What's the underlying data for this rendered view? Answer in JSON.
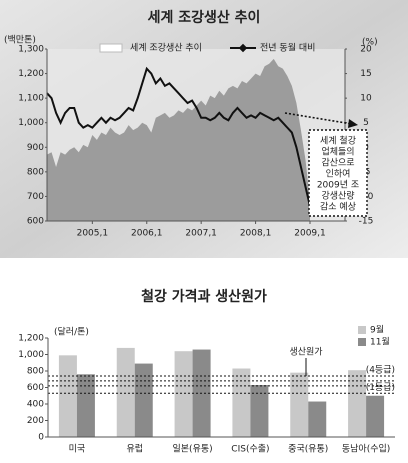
{
  "chart_data": [
    {
      "type": "combo",
      "title": "세계 조강생산 추이",
      "y_label": "(백만톤)",
      "y2_label": "(%)",
      "categories": [
        null,
        null,
        null,
        null,
        null,
        null,
        null,
        null,
        null,
        null,
        "2005,1",
        null,
        null,
        null,
        null,
        null,
        null,
        null,
        null,
        null,
        null,
        null,
        "2006,1",
        null,
        null,
        null,
        null,
        null,
        null,
        null,
        null,
        null,
        null,
        null,
        "2007,1",
        null,
        null,
        null,
        null,
        null,
        null,
        null,
        null,
        null,
        null,
        null,
        "2008,1",
        null,
        null,
        null,
        null,
        null,
        null,
        null,
        null,
        null,
        null,
        null,
        "2009,1"
      ],
      "series": [
        {
          "name": "세계 조강생산 추이",
          "kind": "area",
          "color": "#9c9c9c",
          "values": [
            870,
            880,
            820,
            880,
            870,
            890,
            900,
            880,
            910,
            900,
            950,
            930,
            960,
            950,
            980,
            960,
            950,
            960,
            990,
            970,
            980,
            1000,
            990,
            960,
            1020,
            1030,
            1040,
            1020,
            1030,
            1050,
            1040,
            1060,
            1050,
            1070,
            1090,
            1070,
            1110,
            1100,
            1130,
            1110,
            1140,
            1150,
            1140,
            1170,
            1160,
            1180,
            1200,
            1190,
            1230,
            1240,
            1260,
            1230,
            1220,
            1190,
            1150,
            1080,
            970,
            850,
            680
          ]
        },
        {
          "name": "전년 동월 대비",
          "kind": "line",
          "axis": "y2",
          "color": "#111111",
          "values": [
            11,
            10,
            7,
            5,
            7,
            8,
            8,
            5,
            4,
            4.5,
            4,
            5,
            6,
            5,
            6,
            5.5,
            6,
            7,
            8,
            7.5,
            10,
            13,
            16,
            15,
            13,
            14,
            12.5,
            13,
            12,
            11,
            10,
            9,
            9.5,
            8,
            6,
            6,
            5.5,
            6,
            7,
            6,
            5.5,
            7,
            8,
            7,
            6,
            6.5,
            6,
            7,
            6.5,
            6,
            5.5,
            6,
            5,
            4,
            3,
            0,
            -4,
            -8,
            -12
          ]
        }
      ],
      "ylim": [
        600,
        1300
      ],
      "yticks": [
        600,
        700,
        800,
        900,
        {
          "value": 1000,
          "label": "1,000"
        },
        {
          "value": 1100,
          "label": "1,100"
        },
        {
          "value": 1200,
          "label": "1,200"
        },
        {
          "value": 1300,
          "label": "1,300"
        }
      ],
      "y2lim": [
        -15,
        20
      ],
      "y2ticks": [
        -15,
        -10,
        -5,
        0,
        5,
        10,
        15,
        20
      ],
      "annotation": [
        "세계 철강",
        "업체들의",
        "감산으로",
        "인하여",
        "2009년 조",
        "강생산량",
        "감소 예상"
      ]
    },
    {
      "type": "bar",
      "title": "철강 가격과 생산원가",
      "y_label": "(달러/톤)",
      "categories": [
        "미국",
        "유럽",
        "일본(유통)",
        "CIS(수출)",
        "중국(유통)",
        "동남아(수입)"
      ],
      "series": [
        {
          "name": "9월",
          "color": "#c8c8c8",
          "values": [
            990,
            1080,
            1040,
            830,
            780,
            810
          ]
        },
        {
          "name": "11월",
          "color": "#8a8a8a",
          "values": [
            760,
            890,
            1060,
            630,
            430,
            500
          ]
        }
      ],
      "ylim": [
        0,
        1200
      ],
      "yticks": [
        0,
        200,
        400,
        600,
        800,
        {
          "value": 1000,
          "label": "1,000"
        },
        {
          "value": 1200,
          "label": "1,200"
        }
      ],
      "reference_title": "생산원가",
      "reference_lines": [
        {
          "value": 740,
          "label": "(4등급)"
        },
        {
          "value": 680
        },
        {
          "value": 620
        },
        {
          "value": 530,
          "label": "(1등급)"
        }
      ]
    }
  ]
}
